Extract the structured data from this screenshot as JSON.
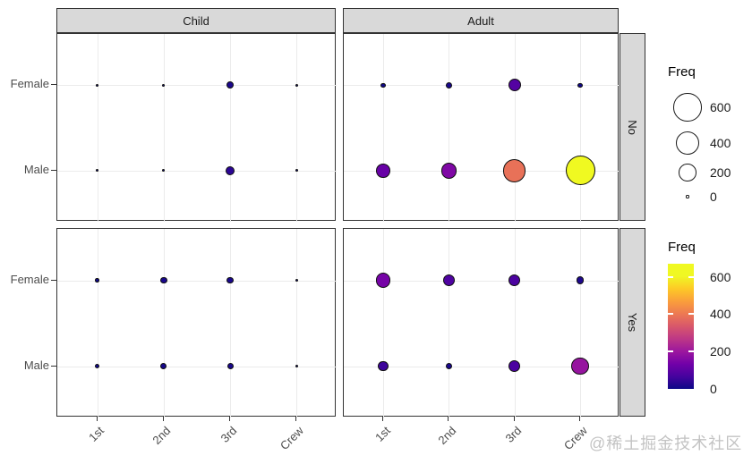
{
  "watermark": "@稀土掘金技术社区",
  "facets": {
    "col_labels": [
      "Child",
      "Adult"
    ],
    "row_labels": [
      "No",
      "Yes"
    ]
  },
  "axes": {
    "x_tick_labels": [
      "1st",
      "2nd",
      "3rd",
      "Crew"
    ],
    "y_tick_labels": [
      "Female",
      "Male"
    ]
  },
  "legend_size": {
    "title": "Freq",
    "entries": [
      {
        "label": "600",
        "value": 600
      },
      {
        "label": "400",
        "value": 400
      },
      {
        "label": "200",
        "value": 200
      },
      {
        "label": "0",
        "value": 0
      }
    ]
  },
  "legend_color": {
    "title": "Freq",
    "ticks": [
      {
        "label": "600",
        "value": 600
      },
      {
        "label": "400",
        "value": 400
      },
      {
        "label": "200",
        "value": 200
      },
      {
        "label": "0",
        "value": 0
      }
    ]
  },
  "chart_data": {
    "type": "scatter",
    "subtype": "faceted-bubble-grid",
    "title": "",
    "x_categories": [
      "1st",
      "2nd",
      "3rd",
      "Crew"
    ],
    "y_categories": [
      "Female",
      "Male"
    ],
    "facet_cols": [
      "Child",
      "Adult"
    ],
    "facet_rows": [
      "No",
      "Yes"
    ],
    "size_variable": "Freq",
    "color_variable": "Freq",
    "value_domain": [
      0,
      670
    ],
    "palette": "plasma",
    "palette_stops": [
      "#0D0887",
      "#46039F",
      "#7201A8",
      "#9C179E",
      "#BD3786",
      "#D8576B",
      "#ED7953",
      "#FA9E3B",
      "#FDC926",
      "#F0F724",
      "#F0F921"
    ],
    "freq": {
      "Child": {
        "No": {
          "Female": [
            0,
            0,
            17,
            0
          ],
          "Male": [
            0,
            0,
            35,
            0
          ]
        },
        "Yes": {
          "Female": [
            1,
            13,
            14,
            0
          ],
          "Male": [
            5,
            11,
            13,
            0
          ]
        }
      },
      "Adult": {
        "No": {
          "Female": [
            4,
            13,
            89,
            3
          ],
          "Male": [
            118,
            154,
            387,
            670
          ]
        },
        "Yes": {
          "Female": [
            140,
            80,
            76,
            20
          ],
          "Male": [
            57,
            14,
            75,
            192
          ]
        }
      }
    },
    "grid": true,
    "legend_position": "right"
  },
  "colors": {
    "strip_bg": "#d9d9d9",
    "panel_border": "#333333",
    "gridline": "#ebebeb",
    "axis_text": "#4d4d4d"
  }
}
